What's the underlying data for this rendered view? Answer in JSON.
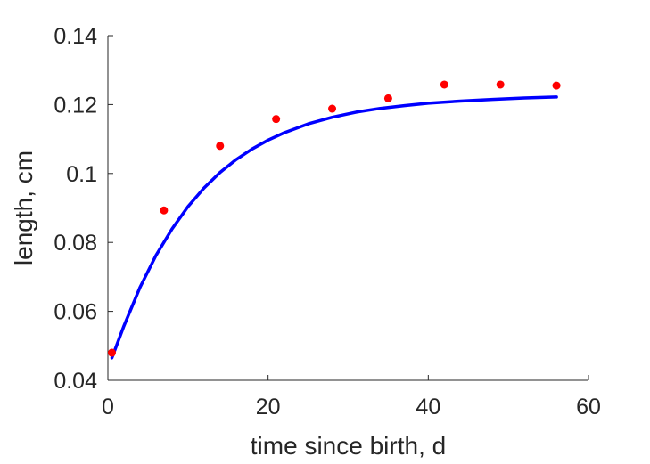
{
  "chart_data": {
    "type": "scatter",
    "xlabel": "time since birth, d",
    "ylabel": "length, cm",
    "xlim": [
      0,
      60
    ],
    "ylim": [
      0.04,
      0.14
    ],
    "xticks": [
      0,
      20,
      40,
      60
    ],
    "xtick_labels": [
      "0",
      "20",
      "40",
      "60"
    ],
    "yticks": [
      0.04,
      0.06,
      0.08,
      0.1,
      0.12,
      0.14
    ],
    "ytick_labels": [
      "0.04",
      "0.06",
      "0.08",
      "0.1",
      "0.12",
      "0.14"
    ],
    "grid": false,
    "series": [
      {
        "type": "scatter",
        "color": "#ff0000",
        "x": [
          0.5,
          7,
          14,
          21,
          28,
          35,
          42,
          49,
          56
        ],
        "y": [
          0.048,
          0.0893,
          0.108,
          0.1158,
          0.1188,
          0.1218,
          0.1258,
          0.1258,
          0.1255
        ]
      },
      {
        "type": "line",
        "color": "#0000ff",
        "x": [
          0.5,
          2,
          4,
          6,
          8,
          10,
          12,
          14,
          16,
          18,
          20,
          22,
          25,
          28,
          31,
          34,
          37,
          40,
          44,
          48,
          52,
          56
        ],
        "y": [
          0.0465,
          0.0558,
          0.0669,
          0.0762,
          0.0839,
          0.0904,
          0.0958,
          0.1003,
          0.104,
          0.1071,
          0.1097,
          0.1118,
          0.1144,
          0.1163,
          0.1178,
          0.1189,
          0.1197,
          0.1204,
          0.121,
          0.1215,
          0.1219,
          0.1222
        ]
      }
    ]
  }
}
